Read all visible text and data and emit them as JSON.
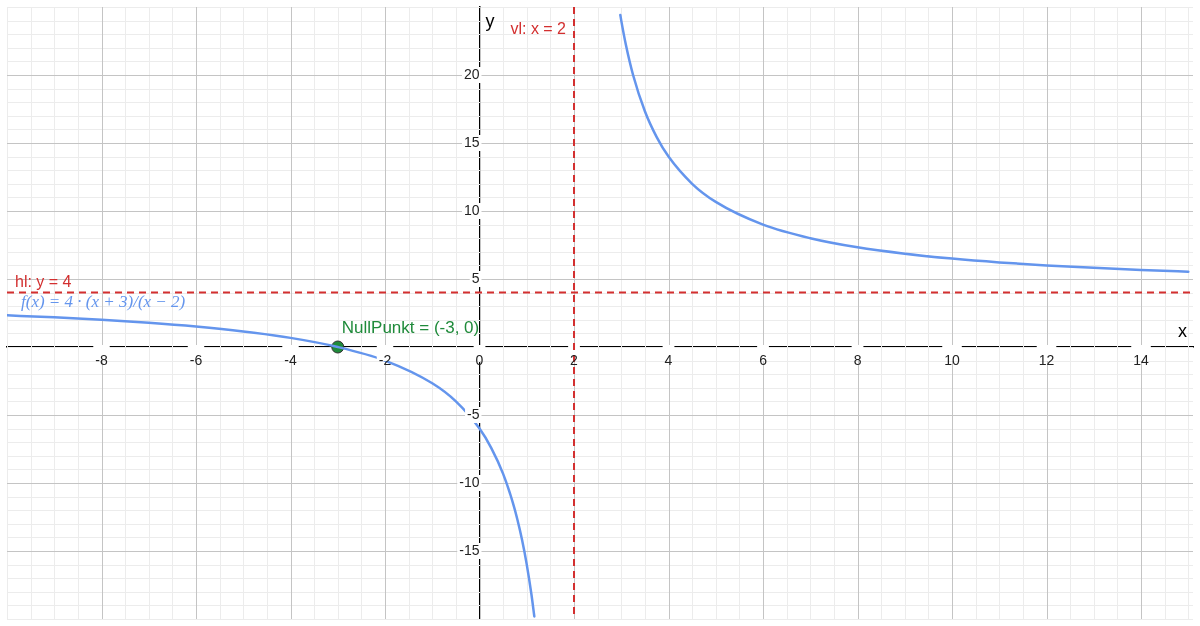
{
  "chart_data": {
    "type": "line",
    "xlabel": "x",
    "ylabel": "y",
    "xlim": [
      -10,
      15.1
    ],
    "ylim": [
      -20,
      25
    ],
    "xticks": [
      -8,
      -6,
      -4,
      -2,
      0,
      2,
      4,
      6,
      8,
      10,
      12,
      14
    ],
    "yticks": [
      -15,
      -10,
      -5,
      5,
      10,
      15,
      20
    ],
    "grid": true,
    "legend": false,
    "marker": "none",
    "line_style": "solid",
    "series": [
      {
        "name": "f(x) = 4 · (x + 3)/(x − 2)",
        "color": "#6495ed",
        "x": [
          -10,
          -9,
          -8,
          -7,
          -6,
          -5,
          -4,
          -3,
          -2,
          -1,
          -0.5,
          0,
          0.25,
          0.5,
          0.7,
          0.8,
          0.9,
          1,
          1.1,
          1.16
        ],
        "values": [
          2.33,
          2.18,
          2,
          1.78,
          1.5,
          1.14,
          0.67,
          0,
          -1,
          -2.67,
          -4,
          -6,
          -7.43,
          -9.33,
          -11.38,
          -12.67,
          -14.18,
          -16,
          -18.22,
          -19.81
        ]
      },
      {
        "color": "#6495ed",
        "x": [
          2.98,
          3,
          3.1,
          3.25,
          3.5,
          3.75,
          4,
          4.5,
          5,
          6,
          7,
          8,
          9,
          10,
          11,
          12,
          13,
          14,
          15
        ],
        "values": [
          24.41,
          24,
          22.18,
          20,
          17.33,
          15.43,
          14,
          12,
          10.67,
          9,
          8,
          7.33,
          6.86,
          6.5,
          6.22,
          6,
          5.82,
          5.67,
          5.54
        ]
      },
      {
        "type": "scatter",
        "name": "NullPunkt = (-3, 0)",
        "color": "#1f8a3a",
        "marker": "circle",
        "x": [
          -3
        ],
        "values": [
          0
        ]
      }
    ],
    "ref_lines": [
      {
        "axis": "y",
        "value": 4,
        "label": "hl: y = 4",
        "color": "#d32f2f",
        "line_style": "dashed"
      },
      {
        "axis": "x",
        "value": 2,
        "label": "vl: x = 2",
        "color": "#d32f2f",
        "line_style": "dashed"
      }
    ]
  }
}
